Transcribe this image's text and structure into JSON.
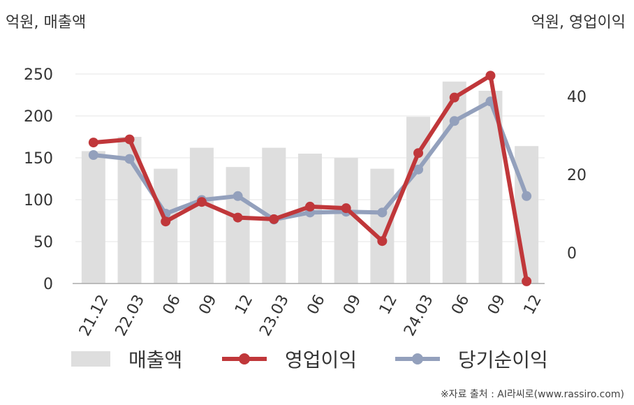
{
  "units": {
    "left": "억원, 매출액",
    "right": "억원, 영업이익"
  },
  "source": "※자료 출처 : AI라씨로(www.rassiro.com)",
  "legend": {
    "revenue": "매출액",
    "operating_profit": "영업이익",
    "net_profit": "당기순이익"
  },
  "colors": {
    "bar": "#dedede",
    "operating_profit": "#c0373a",
    "net_profit": "#93a0bc",
    "grid": "#e6e6e6",
    "axis": "#aaaaaa",
    "text": "#333333"
  },
  "chart_data": {
    "type": "bar",
    "categories": [
      "21.12",
      "22.03",
      "06",
      "09",
      "12",
      "23.03",
      "06",
      "09",
      "12",
      "24.03",
      "06",
      "09",
      "12"
    ],
    "y_left": {
      "ticks": [
        0,
        50,
        100,
        150,
        200,
        250
      ],
      "range": [
        0,
        250
      ]
    },
    "y_right": {
      "ticks": [
        0,
        20,
        40
      ],
      "range": [
        -8,
        47
      ]
    },
    "series": [
      {
        "name": "매출액",
        "type": "bar",
        "axis": "left",
        "values": [
          158,
          175,
          137,
          162,
          139,
          162,
          155,
          150,
          137,
          199,
          241,
          230,
          164
        ]
      },
      {
        "name": "영업이익",
        "type": "line",
        "axis": "right",
        "values": [
          28.2,
          29.0,
          8.0,
          13.0,
          9.0,
          8.6,
          11.8,
          11.4,
          3.0,
          25.5,
          39.7,
          45.3,
          -7.3
        ]
      },
      {
        "name": "당기순이익",
        "type": "line",
        "axis": "right",
        "values": [
          25.0,
          24.0,
          10.0,
          13.5,
          14.5,
          8.5,
          10.3,
          10.5,
          10.3,
          21.3,
          33.7,
          38.7,
          14.5
        ]
      }
    ],
    "grid": true,
    "legend_position": "bottom"
  }
}
